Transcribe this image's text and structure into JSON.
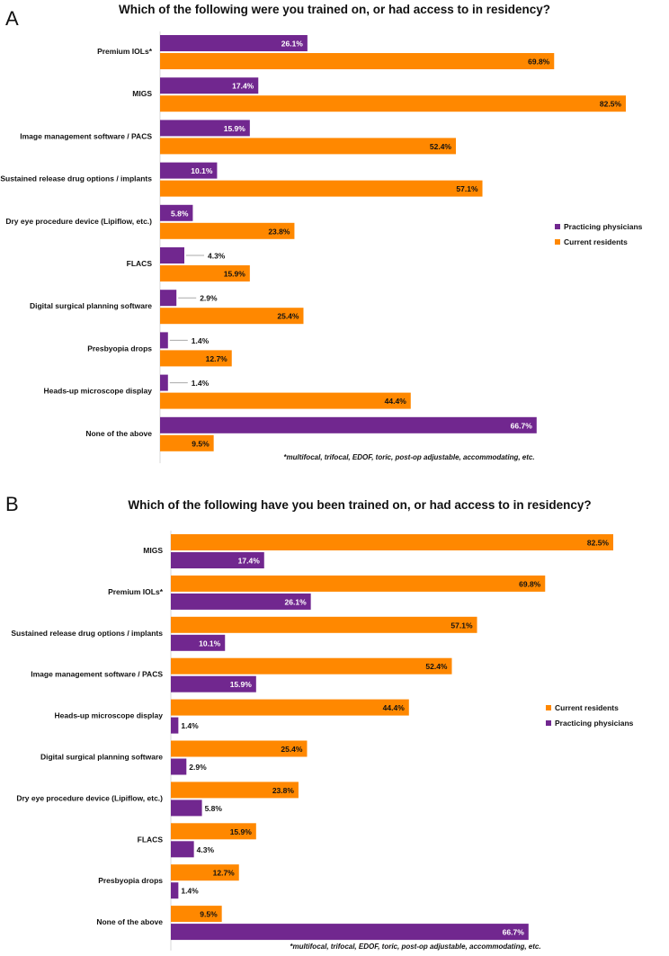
{
  "colors": {
    "practicing": "#71278F",
    "residents": "#FF8800"
  },
  "chart_data": [
    {
      "type": "bar",
      "panel_label": "A",
      "title": "Which of the following were you trained on, or had access to in residency?",
      "orientation": "horizontal",
      "categories": [
        "Premium IOLs*",
        "MIGS",
        "Image management software / PACS",
        "Sustained release drug options / implants",
        "Dry eye procedure device (Lipiflow, etc.)",
        "FLACS",
        "Digital surgical planning software",
        "Presbyopia drops",
        "Heads-up microscope display",
        "None of the above"
      ],
      "series": [
        {
          "name": "Practicing physicians",
          "key": "practicing",
          "values": [
            26.1,
            17.4,
            15.9,
            10.1,
            5.8,
            4.3,
            2.9,
            1.4,
            1.4,
            66.7
          ]
        },
        {
          "name": "Current residents",
          "key": "residents",
          "values": [
            69.8,
            82.5,
            52.4,
            57.1,
            23.8,
            15.9,
            25.4,
            12.7,
            44.4,
            9.5
          ]
        }
      ],
      "xlim": [
        0,
        82.5
      ],
      "unit": "%",
      "legend": "right",
      "footnote": "*multifocal, trifocal, EDOF, toric, post-op adjustable, accommodating, etc."
    },
    {
      "type": "bar",
      "panel_label": "B",
      "title": "Which of the following have you been trained on, or had access to in residency?",
      "orientation": "horizontal",
      "categories": [
        "MIGS",
        "Premium IOLs*",
        "Sustained release drug options / implants",
        "Image management software / PACS",
        "Heads-up microscope display",
        "Digital surgical planning software",
        "Dry eye procedure device (Lipiflow, etc.)",
        "FLACS",
        "Presbyopia drops",
        "None of the above"
      ],
      "series": [
        {
          "name": "Current residents",
          "key": "residents",
          "values": [
            82.5,
            69.8,
            57.1,
            52.4,
            44.4,
            25.4,
            23.8,
            15.9,
            12.7,
            9.5
          ]
        },
        {
          "name": "Practicing physicians",
          "key": "practicing",
          "values": [
            17.4,
            26.1,
            10.1,
            15.9,
            1.4,
            2.9,
            5.8,
            4.3,
            1.4,
            66.7
          ]
        }
      ],
      "xlim": [
        0,
        82.5
      ],
      "unit": "%",
      "legend": "right",
      "footnote": "*multifocal, trifocal, EDOF, toric, post-op adjustable, accommodating, etc."
    }
  ]
}
